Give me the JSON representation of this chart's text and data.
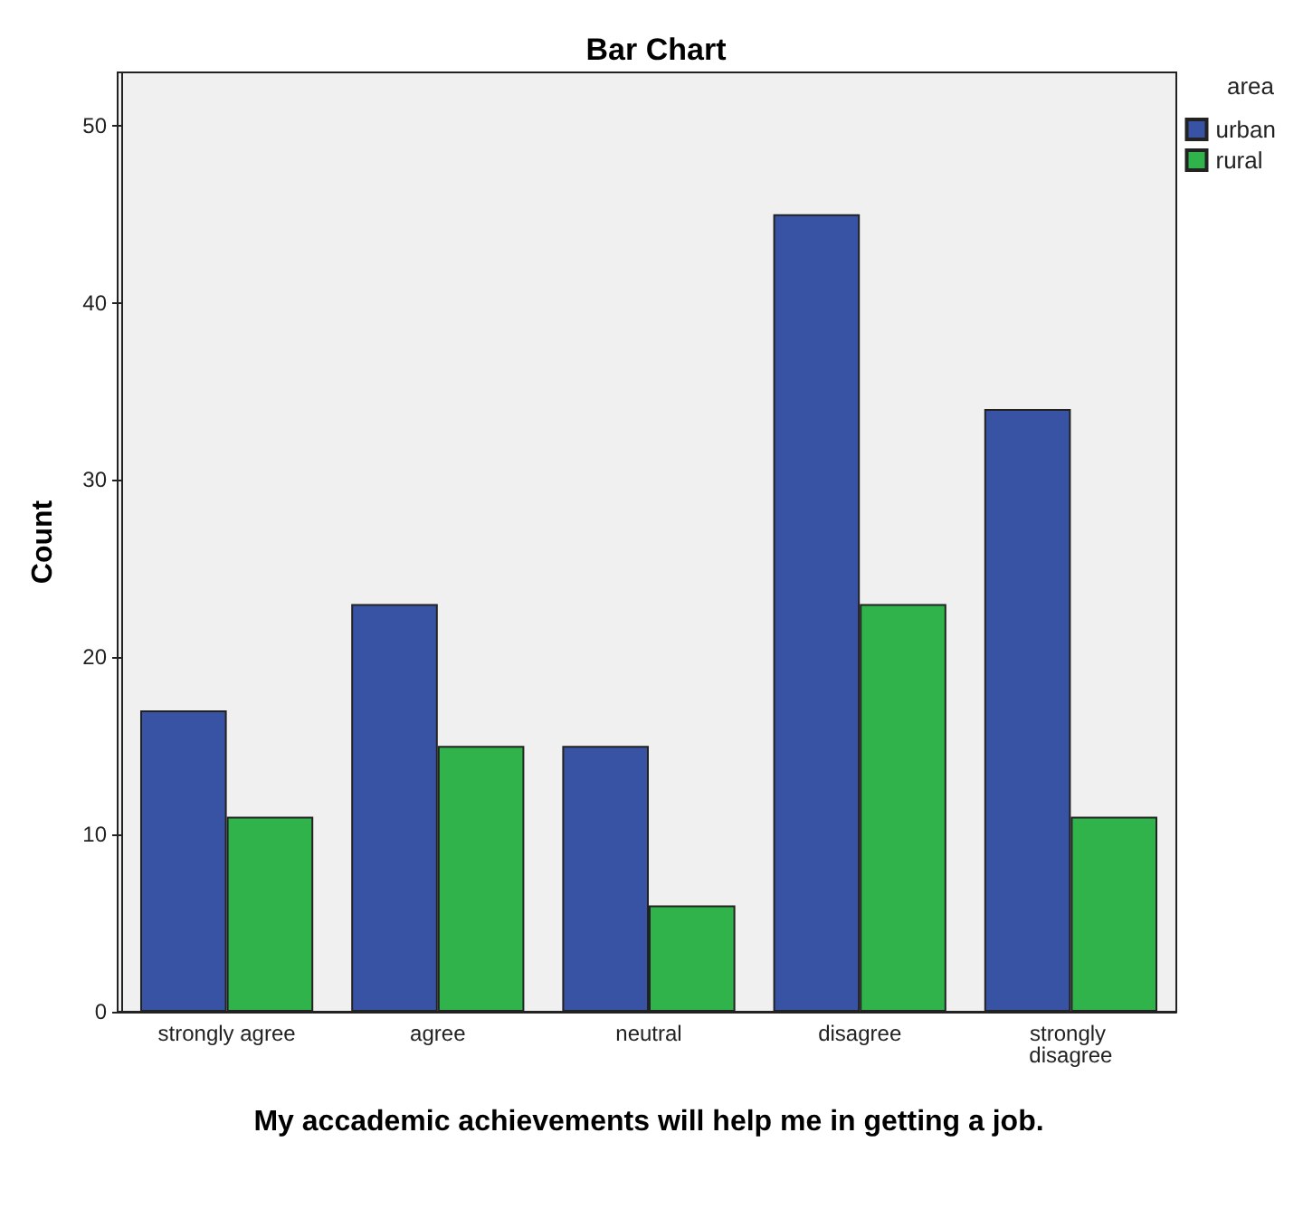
{
  "chart_data": {
    "type": "bar",
    "title": "Bar Chart",
    "xlabel": "My accademic achievements will help me in getting a job.",
    "ylabel": "Count",
    "legend_title": "area",
    "categories": [
      "strongly agree",
      "agree",
      "neutral",
      "disagree",
      "strongly disagree"
    ],
    "series": [
      {
        "name": "urban",
        "color": "#3953a4",
        "values": [
          17,
          23,
          15,
          45,
          34
        ]
      },
      {
        "name": "rural",
        "color": "#2fb34a",
        "values": [
          11,
          15,
          6,
          23,
          11
        ]
      }
    ],
    "ylim": [
      0,
      53
    ],
    "yticks": [
      0,
      10,
      20,
      30,
      40,
      50
    ],
    "grid": false,
    "legend": "top right"
  }
}
